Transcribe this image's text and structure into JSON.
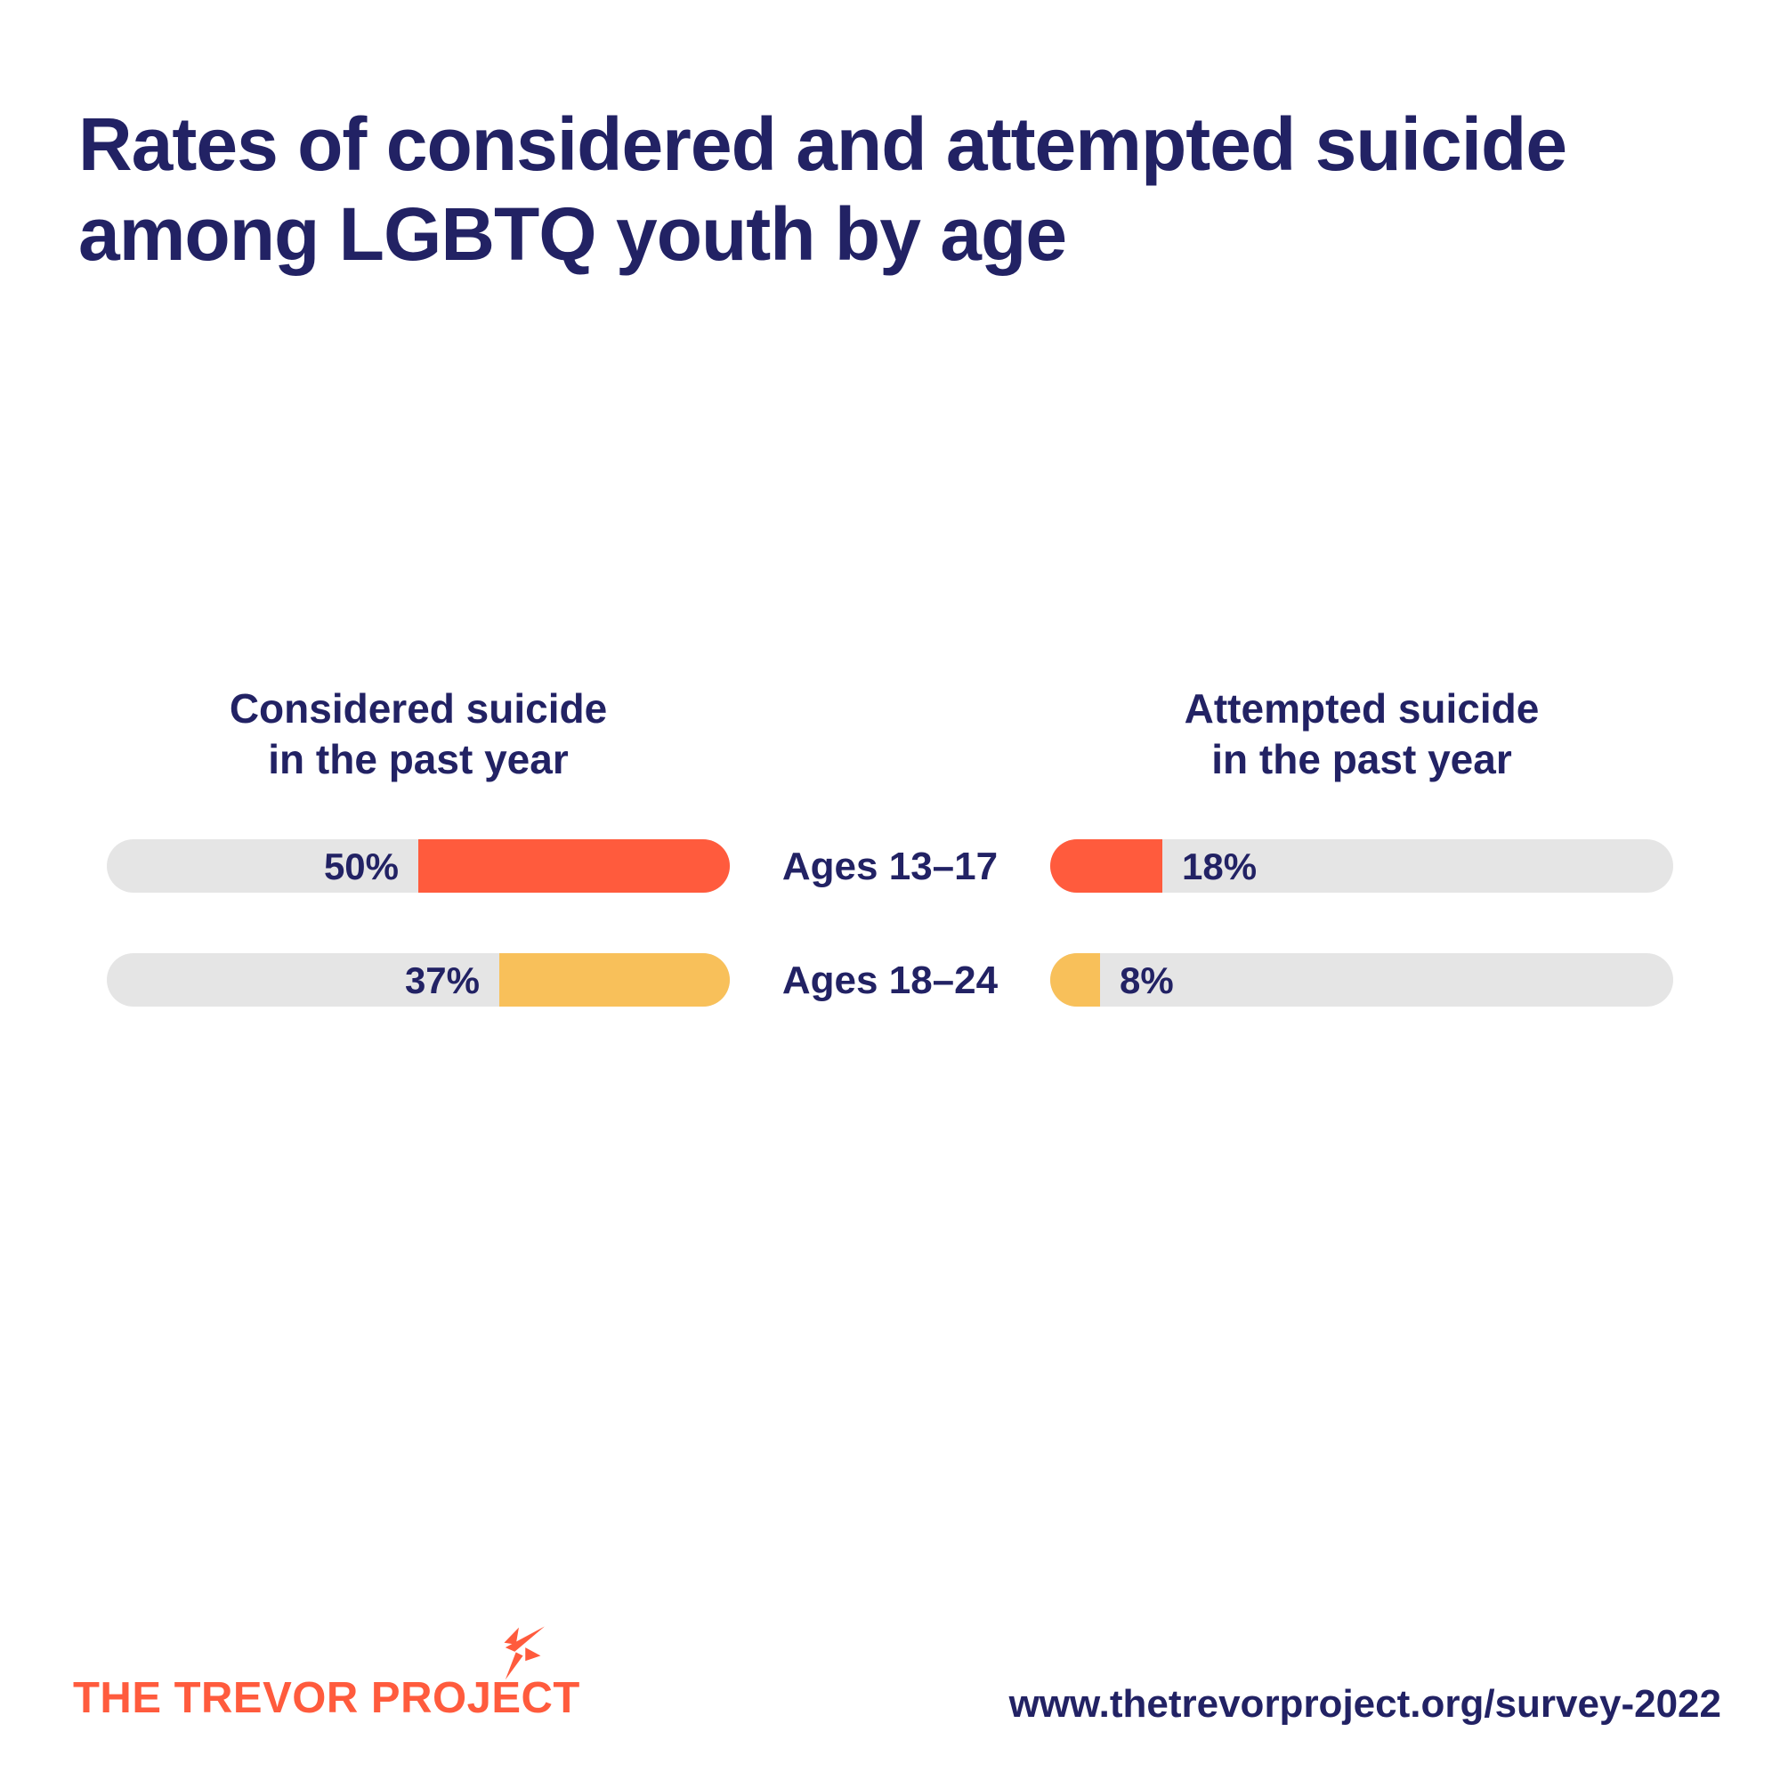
{
  "page": {
    "title_line1": "Rates of considered and attempted suicide",
    "title_line2": "among LGBTQ youth by age"
  },
  "columns": {
    "left": {
      "line1": "Considered suicide",
      "line2": "in the past year"
    },
    "right": {
      "line1": "Attempted suicide",
      "line2": "in the past year"
    }
  },
  "chart_data": {
    "type": "bar",
    "orientation": "horizontal-paired",
    "categories": [
      "Ages 13–17",
      "Ages 18–24"
    ],
    "series": [
      {
        "name": "Considered suicide in the past year",
        "values": [
          50,
          37
        ],
        "labels": [
          "50%",
          "37%"
        ],
        "bar_alignment": "right"
      },
      {
        "name": "Attempted suicide in the past year",
        "values": [
          18,
          8
        ],
        "labels": [
          "18%",
          "8%"
        ],
        "bar_alignment": "left"
      }
    ],
    "xlim": [
      0,
      100
    ],
    "grid": "off",
    "legend_position": "column-headers",
    "colors": {
      "row_ages_13_17": "#FF5B3D",
      "row_ages_18_24": "#F8C05A",
      "track": "#E5E5E5"
    }
  },
  "footer": {
    "logo_text": "THE TREVOR PROJECT",
    "logo_icon": "sparkle-star-icon",
    "url": "www.thetrevorproject.org/survey-2022"
  },
  "theme": {
    "navy": "#222264",
    "orange": "#FF5B3D",
    "yellow": "#F8C05A",
    "track_gray": "#E5E5E5",
    "background": "#FFFFFF"
  }
}
